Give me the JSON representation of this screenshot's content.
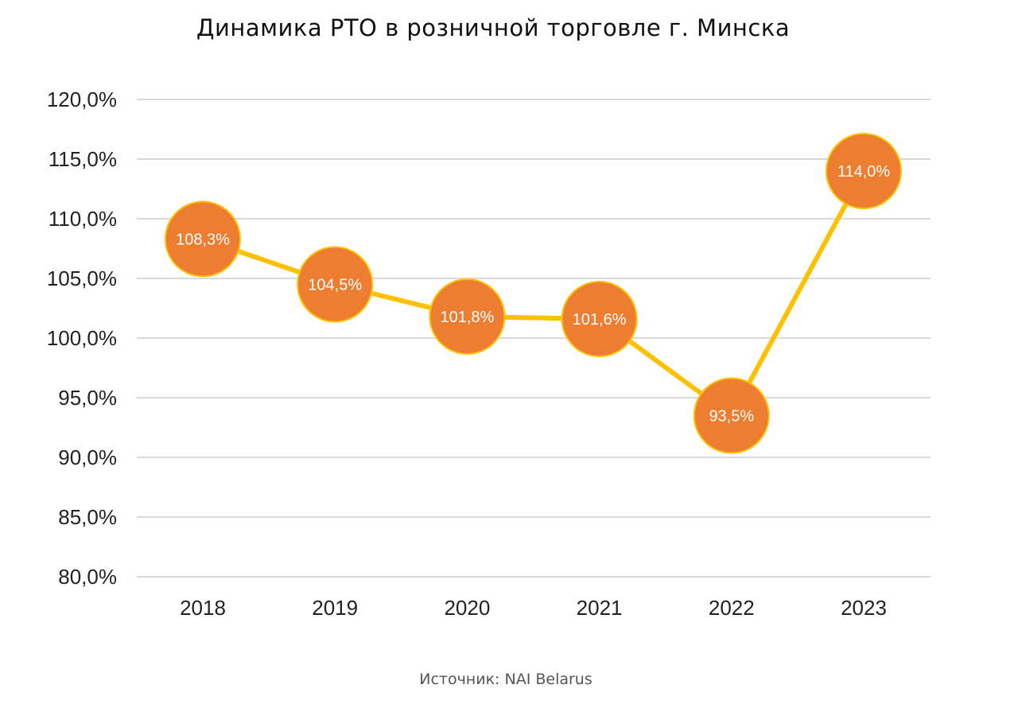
{
  "chart_data": {
    "type": "line",
    "title": "Динамика РТО в розничной торговле г. Минска",
    "categories": [
      "2018",
      "2019",
      "2020",
      "2021",
      "2022",
      "2023"
    ],
    "values": [
      108.3,
      104.5,
      101.8,
      101.6,
      93.5,
      114.0
    ],
    "data_labels": [
      "108,3%",
      "104,5%",
      "101,8%",
      "101,6%",
      "93,5%",
      "114,0%"
    ],
    "y_ticks": [
      80,
      85,
      90,
      95,
      100,
      105,
      110,
      115,
      120
    ],
    "y_tick_labels": [
      "80,0%",
      "85,0%",
      "90,0%",
      "95,0%",
      "100,0%",
      "105,0%",
      "110,0%",
      "115,0%",
      "120,0%"
    ],
    "ylim": [
      80,
      120
    ],
    "xlabel": "",
    "ylabel": "",
    "grid": true,
    "colors": {
      "line": "#FFC000",
      "marker": "#ED7D31",
      "grid": "#D9D9D9"
    }
  },
  "source": "Источник: NAI Belarus"
}
